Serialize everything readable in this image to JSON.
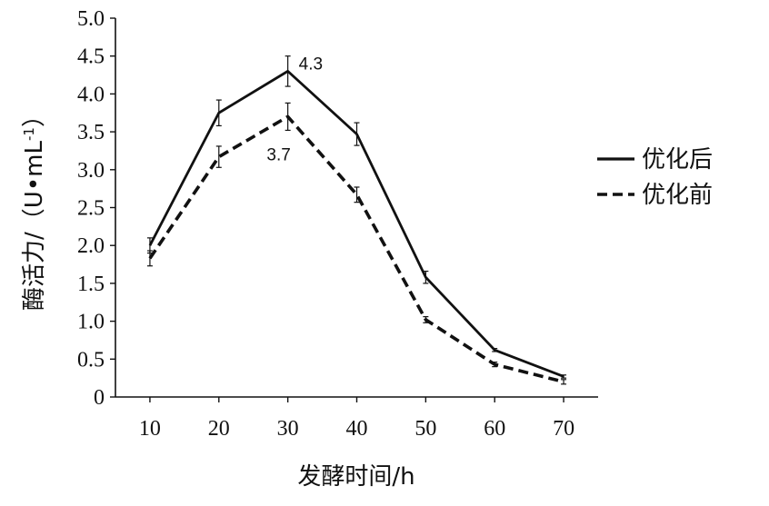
{
  "chart_data": {
    "type": "line",
    "title": "",
    "xlabel": "发酵时间/h",
    "ylabel": "酶活力/（U•mL",
    "ylabel_sup": "-1",
    "ylabel_close": "）",
    "x": [
      10,
      20,
      30,
      40,
      50,
      60,
      70
    ],
    "xlim": [
      5,
      75
    ],
    "ylim": [
      0,
      5.0
    ],
    "x_ticks": [
      "10",
      "20",
      "30",
      "40",
      "50",
      "60",
      "70"
    ],
    "y_ticks": [
      "0",
      "0.5",
      "1.0",
      "1.5",
      "2.0",
      "2.5",
      "3.0",
      "3.5",
      "4.0",
      "4.5",
      "5.0"
    ],
    "grid": false,
    "legend_position": "right",
    "series": [
      {
        "name": "优化后",
        "style": "solid",
        "color": "#111111",
        "values": [
          2.0,
          3.75,
          4.3,
          3.47,
          1.58,
          0.62,
          0.27
        ],
        "errors": [
          0.1,
          0.17,
          0.2,
          0.15,
          0.08,
          0.02,
          0.02
        ]
      },
      {
        "name": "优化前",
        "style": "dashed",
        "color": "#111111",
        "values": [
          1.83,
          3.17,
          3.7,
          2.67,
          1.02,
          0.43,
          0.2
        ],
        "errors": [
          0.1,
          0.14,
          0.18,
          0.1,
          0.04,
          0.03,
          0.03
        ]
      }
    ],
    "annotations": [
      {
        "text": "4.3",
        "series": 0,
        "index": 2
      },
      {
        "text": "3.7",
        "series": 1,
        "index": 2
      }
    ]
  }
}
